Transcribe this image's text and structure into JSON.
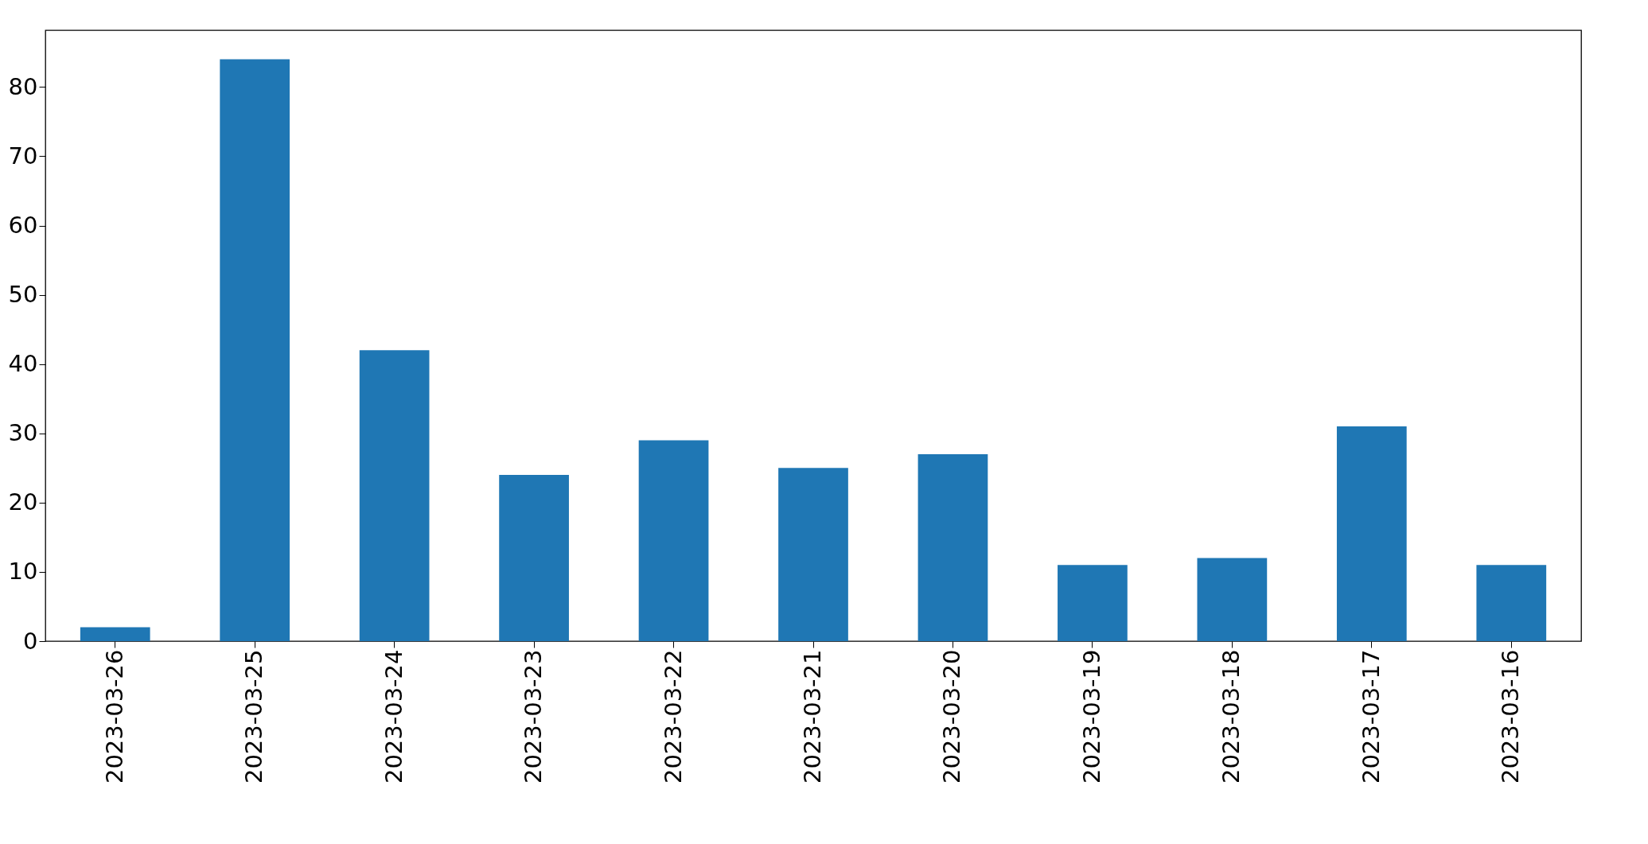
{
  "chart_data": {
    "type": "bar",
    "categories": [
      "2023-03-26",
      "2023-03-25",
      "2023-03-24",
      "2023-03-23",
      "2023-03-22",
      "2023-03-21",
      "2023-03-20",
      "2023-03-19",
      "2023-03-18",
      "2023-03-17",
      "2023-03-16"
    ],
    "values": [
      2,
      84,
      42,
      24,
      29,
      25,
      27,
      11,
      12,
      31,
      11
    ],
    "color": "#1f77b4",
    "ylim": [
      0,
      88.2
    ],
    "yticks": [
      0,
      10,
      20,
      30,
      40,
      50,
      60,
      70,
      80
    ],
    "grid": false
  }
}
